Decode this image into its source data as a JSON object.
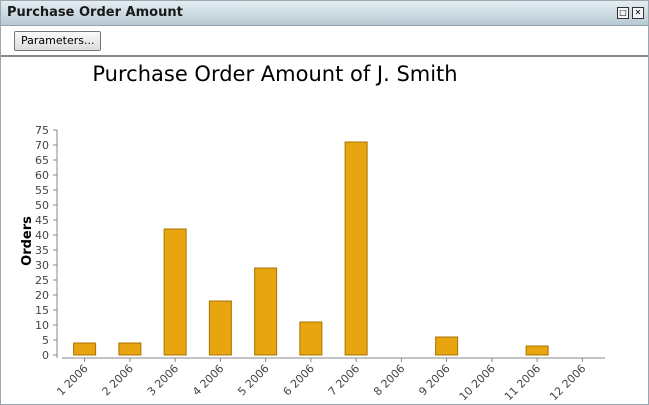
{
  "window": {
    "title": "Purchase Order Amount",
    "button": "Parameters..."
  },
  "chart_data": {
    "type": "bar",
    "title": "Purchase Order Amount of J. Smith",
    "y_label": "Orders",
    "categories": [
      "1 2006",
      "2 2006",
      "3 2006",
      "4 2006",
      "5 2006",
      "6 2006",
      "7 2006",
      "8 2006",
      "9 2006",
      "10 2006",
      "11 2006",
      "12 2006"
    ],
    "values": [
      4,
      4,
      42,
      18,
      29,
      11,
      71,
      null,
      6,
      null,
      3,
      null
    ],
    "color": "#e8a50f",
    "ylim": [
      0,
      75
    ],
    "yticks": [
      0,
      5,
      10,
      15,
      20,
      25,
      30,
      35,
      40,
      45,
      50,
      55,
      60,
      65,
      70,
      75
    ]
  }
}
